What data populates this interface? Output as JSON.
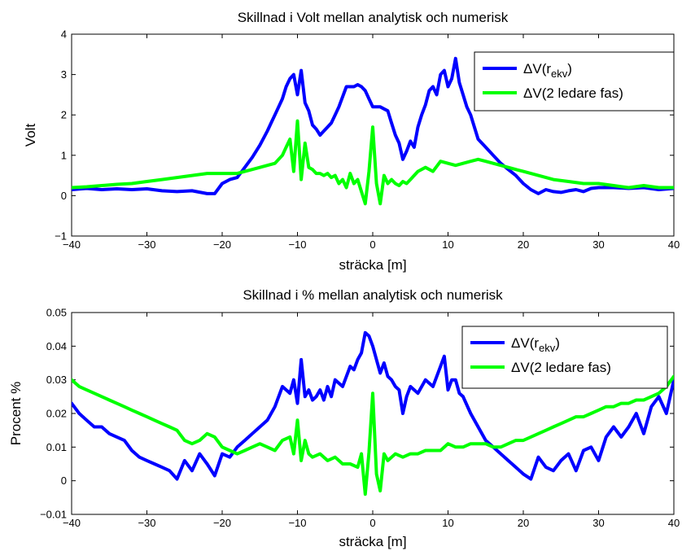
{
  "chart_data": [
    {
      "type": "line",
      "title": "Skillnad i Volt mellan analytisk och numerisk",
      "xlabel": "sträcka [m]",
      "ylabel": "Volt",
      "xlim": [
        -40,
        40
      ],
      "ylim": [
        -1,
        4
      ],
      "xticks": [
        -40,
        -30,
        -20,
        -10,
        0,
        10,
        20,
        30,
        40
      ],
      "xticklabels": [
        "−40",
        "−30",
        "−20",
        "−10",
        "0",
        "10",
        "20",
        "30",
        "40"
      ],
      "yticks": [
        -1,
        0,
        1,
        2,
        3,
        4
      ],
      "yticklabels": [
        "−1",
        "0",
        "1",
        "2",
        "3",
        "4"
      ],
      "legend_position": "top-right",
      "grid": false,
      "series": [
        {
          "name": "ΔV(r_ekv)",
          "legend": {
            "base": "ΔV(r",
            "sub": "ekv",
            "close": ")"
          },
          "color": "#0000ff",
          "x": [
            -40,
            -38,
            -36,
            -34,
            -32,
            -30,
            -28,
            -26,
            -24,
            -22,
            -21,
            -20,
            -19,
            -18,
            -17,
            -16,
            -15,
            -14,
            -13.5,
            -13,
            -12.5,
            -12,
            -11.5,
            -11,
            -10.5,
            -10,
            -9.5,
            -9,
            -8.5,
            -8,
            -7.5,
            -7,
            -6.5,
            -6,
            -5.5,
            -5,
            -4.5,
            -4,
            -3.5,
            -3,
            -2.5,
            -2,
            -1.5,
            -1,
            -0.5,
            0,
            0.5,
            1,
            1.5,
            2,
            2.5,
            3,
            3.5,
            4,
            4.5,
            5,
            5.5,
            6,
            6.5,
            7,
            7.5,
            8,
            8.5,
            9,
            9.5,
            10,
            10.5,
            11,
            11.5,
            12,
            12.5,
            13,
            13.5,
            14,
            14.5,
            15,
            16,
            17,
            18,
            19,
            20,
            21,
            22,
            23,
            24,
            25,
            26,
            27,
            28,
            29,
            30,
            32,
            34,
            36,
            38,
            40
          ],
          "values": [
            0.15,
            0.18,
            0.15,
            0.17,
            0.15,
            0.17,
            0.12,
            0.1,
            0.12,
            0.05,
            0.05,
            0.3,
            0.4,
            0.45,
            0.7,
            0.95,
            1.25,
            1.6,
            1.8,
            2.0,
            2.2,
            2.4,
            2.7,
            2.9,
            3.0,
            2.5,
            3.1,
            2.3,
            2.1,
            1.75,
            1.65,
            1.5,
            1.6,
            1.7,
            1.8,
            2.0,
            2.2,
            2.45,
            2.7,
            2.7,
            2.7,
            2.75,
            2.7,
            2.6,
            2.4,
            2.2,
            2.2,
            2.2,
            2.15,
            2.1,
            1.8,
            1.5,
            1.3,
            0.9,
            1.1,
            1.35,
            1.2,
            1.7,
            2.0,
            2.25,
            2.6,
            2.7,
            2.5,
            3.0,
            3.1,
            2.7,
            2.9,
            3.4,
            2.8,
            2.5,
            2.2,
            2.0,
            1.7,
            1.4,
            1.3,
            1.2,
            1.0,
            0.8,
            0.65,
            0.5,
            0.3,
            0.15,
            0.05,
            0.15,
            0.1,
            0.08,
            0.12,
            0.15,
            0.1,
            0.18,
            0.2,
            0.2,
            0.18,
            0.2,
            0.15,
            0.18
          ]
        },
        {
          "name": "ΔV(2 ledare fas)",
          "legend": {
            "base": "ΔV(2 ledare fas)",
            "sub": "",
            "close": ""
          },
          "color": "#00ff00",
          "x": [
            -40,
            -38,
            -36,
            -34,
            -32,
            -30,
            -28,
            -26,
            -24,
            -22,
            -20,
            -18,
            -16,
            -15,
            -14,
            -13,
            -12,
            -11.5,
            -11,
            -10.5,
            -10,
            -9.5,
            -9,
            -8.5,
            -8,
            -7.5,
            -7,
            -6.5,
            -6,
            -5.5,
            -5,
            -4.5,
            -4,
            -3.5,
            -3,
            -2.5,
            -2,
            -1.5,
            -1,
            -0.5,
            0,
            0.5,
            1,
            1.5,
            2,
            2.5,
            3,
            3.5,
            4,
            4.5,
            5,
            6,
            7,
            8,
            9,
            10,
            11,
            12,
            13,
            14,
            15,
            16,
            17,
            18,
            19,
            20,
            22,
            24,
            26,
            28,
            30,
            32,
            34,
            36,
            38,
            40
          ],
          "values": [
            0.2,
            0.22,
            0.25,
            0.28,
            0.3,
            0.35,
            0.4,
            0.45,
            0.5,
            0.55,
            0.55,
            0.55,
            0.65,
            0.7,
            0.75,
            0.8,
            1.0,
            1.2,
            1.4,
            0.6,
            1.85,
            0.4,
            1.3,
            0.7,
            0.65,
            0.55,
            0.55,
            0.5,
            0.55,
            0.45,
            0.5,
            0.3,
            0.4,
            0.2,
            0.55,
            0.3,
            0.4,
            0.1,
            -0.2,
            0.6,
            1.7,
            0.3,
            -0.2,
            0.5,
            0.3,
            0.4,
            0.3,
            0.25,
            0.35,
            0.3,
            0.4,
            0.6,
            0.7,
            0.6,
            0.85,
            0.8,
            0.75,
            0.8,
            0.85,
            0.9,
            0.85,
            0.8,
            0.75,
            0.7,
            0.65,
            0.6,
            0.5,
            0.4,
            0.35,
            0.3,
            0.3,
            0.25,
            0.2,
            0.25,
            0.2,
            0.2
          ]
        }
      ]
    },
    {
      "type": "line",
      "title": "Skillnad i % mellan analytisk och numerisk",
      "xlabel": "sträcka [m]",
      "ylabel": "Procent %",
      "xlim": [
        -40,
        40
      ],
      "ylim": [
        -0.01,
        0.05
      ],
      "xticks": [
        -40,
        -30,
        -20,
        -10,
        0,
        10,
        20,
        30,
        40
      ],
      "xticklabels": [
        "−40",
        "−30",
        "−20",
        "−10",
        "0",
        "10",
        "20",
        "30",
        "40"
      ],
      "yticks": [
        -0.01,
        0,
        0.01,
        0.02,
        0.03,
        0.04,
        0.05
      ],
      "yticklabels": [
        "−0.01",
        "0",
        "0.01",
        "0.02",
        "0.03",
        "0.04",
        "0.05"
      ],
      "legend_position": "top-right",
      "grid": false,
      "series": [
        {
          "name": "ΔV(r_ekv)",
          "legend": {
            "base": "ΔV(r",
            "sub": "ekv",
            "close": ")"
          },
          "color": "#0000ff",
          "x": [
            -40,
            -39,
            -38,
            -37,
            -36,
            -35,
            -34,
            -33,
            -32,
            -31,
            -30,
            -29,
            -28,
            -27,
            -26,
            -25,
            -24,
            -23,
            -22,
            -21,
            -20,
            -19,
            -18,
            -17,
            -16,
            -15,
            -14,
            -13,
            -12,
            -11,
            -10.5,
            -10,
            -9.5,
            -9,
            -8.5,
            -8,
            -7.5,
            -7,
            -6.5,
            -6,
            -5.5,
            -5,
            -4,
            -3,
            -2.5,
            -2,
            -1.5,
            -1,
            -0.5,
            0,
            0.5,
            1,
            1.5,
            2,
            2.5,
            3,
            3.5,
            4,
            4.5,
            5,
            6,
            7,
            8,
            9,
            9.5,
            10,
            10.5,
            11,
            11.5,
            12,
            13,
            14,
            15,
            16,
            17,
            18,
            19,
            20,
            21,
            22,
            23,
            24,
            25,
            26,
            27,
            28,
            29,
            30,
            31,
            32,
            33,
            34,
            35,
            36,
            37,
            38,
            39,
            40
          ],
          "values": [
            0.023,
            0.02,
            0.018,
            0.016,
            0.016,
            0.014,
            0.013,
            0.012,
            0.009,
            0.007,
            0.006,
            0.005,
            0.004,
            0.003,
            0.0005,
            0.006,
            0.003,
            0.008,
            0.005,
            0.0015,
            0.008,
            0.007,
            0.01,
            0.012,
            0.014,
            0.016,
            0.018,
            0.022,
            0.028,
            0.026,
            0.03,
            0.023,
            0.036,
            0.025,
            0.027,
            0.024,
            0.025,
            0.027,
            0.024,
            0.028,
            0.025,
            0.03,
            0.028,
            0.034,
            0.033,
            0.036,
            0.038,
            0.044,
            0.043,
            0.04,
            0.036,
            0.032,
            0.035,
            0.031,
            0.03,
            0.028,
            0.027,
            0.02,
            0.025,
            0.028,
            0.026,
            0.03,
            0.028,
            0.034,
            0.037,
            0.027,
            0.03,
            0.03,
            0.026,
            0.025,
            0.02,
            0.016,
            0.012,
            0.01,
            0.008,
            0.006,
            0.004,
            0.002,
            0.0005,
            0.007,
            0.004,
            0.003,
            0.006,
            0.008,
            0.003,
            0.009,
            0.01,
            0.006,
            0.013,
            0.016,
            0.013,
            0.016,
            0.02,
            0.014,
            0.022,
            0.025,
            0.02,
            0.03
          ]
        },
        {
          "name": "ΔV(2 ledare fas)",
          "legend": {
            "base": "ΔV(2 ledare fas)",
            "sub": "",
            "close": ""
          },
          "color": "#00ff00",
          "x": [
            -40,
            -39,
            -38,
            -37,
            -36,
            -35,
            -34,
            -33,
            -32,
            -31,
            -30,
            -29,
            -28,
            -27,
            -26,
            -25,
            -24,
            -23,
            -22,
            -21,
            -20,
            -19,
            -18,
            -17,
            -16,
            -15,
            -14,
            -13,
            -12,
            -11,
            -10.5,
            -10,
            -9.5,
            -9,
            -8.5,
            -8,
            -7,
            -6,
            -5,
            -4,
            -3,
            -2,
            -1.5,
            -1,
            -0.5,
            0,
            0.5,
            1,
            1.5,
            2,
            3,
            4,
            5,
            6,
            7,
            8,
            9,
            10,
            11,
            12,
            13,
            14,
            15,
            16,
            17,
            18,
            19,
            20,
            21,
            22,
            23,
            24,
            25,
            26,
            27,
            28,
            29,
            30,
            31,
            32,
            33,
            34,
            35,
            36,
            37,
            38,
            39,
            40
          ],
          "values": [
            0.03,
            0.028,
            0.027,
            0.026,
            0.025,
            0.024,
            0.023,
            0.022,
            0.021,
            0.02,
            0.019,
            0.018,
            0.017,
            0.016,
            0.015,
            0.012,
            0.011,
            0.012,
            0.014,
            0.013,
            0.01,
            0.009,
            0.008,
            0.009,
            0.01,
            0.011,
            0.01,
            0.009,
            0.012,
            0.013,
            0.008,
            0.018,
            0.006,
            0.012,
            0.008,
            0.007,
            0.008,
            0.006,
            0.007,
            0.005,
            0.005,
            0.004,
            0.008,
            -0.004,
            0.0085,
            0.026,
            0.002,
            -0.003,
            0.008,
            0.006,
            0.008,
            0.007,
            0.008,
            0.008,
            0.009,
            0.009,
            0.009,
            0.011,
            0.01,
            0.01,
            0.011,
            0.011,
            0.011,
            0.01,
            0.01,
            0.011,
            0.012,
            0.012,
            0.013,
            0.014,
            0.015,
            0.016,
            0.017,
            0.018,
            0.019,
            0.019,
            0.02,
            0.021,
            0.022,
            0.022,
            0.023,
            0.023,
            0.024,
            0.024,
            0.025,
            0.026,
            0.028,
            0.031
          ]
        }
      ]
    }
  ]
}
